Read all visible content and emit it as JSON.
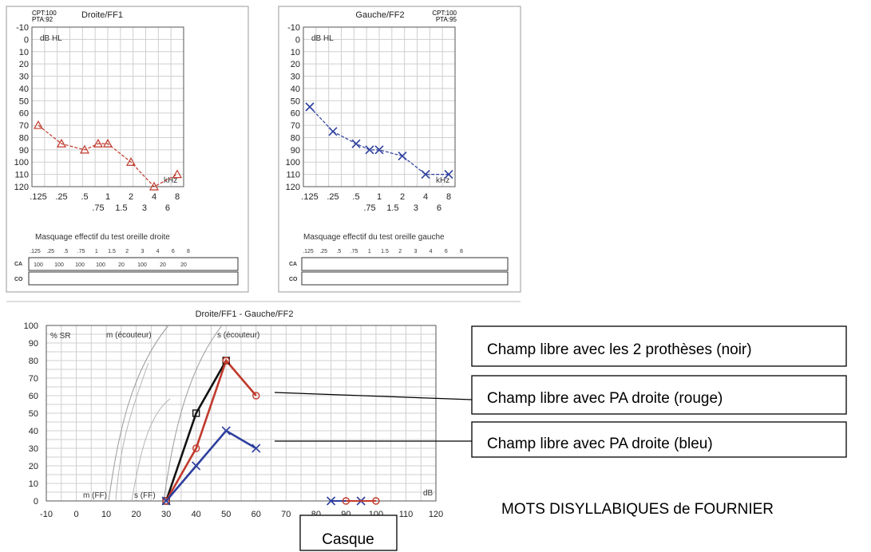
{
  "colors": {
    "right_ear": "#c0392b",
    "left_ear": "#2e3f9e",
    "both": "#111111",
    "masking_red": "#8b1a1a"
  },
  "chart_data": [
    {
      "type": "line",
      "title": "Droite/FF1",
      "stats": [
        "CPT:100",
        "PTA:92"
      ],
      "unit_label": "dB HL",
      "x_unit": "kHz",
      "x_ticks_top": [
        ".125",
        ".25",
        ".5",
        "1",
        "2",
        "4",
        "8"
      ],
      "x_ticks_bottom": [
        ".75",
        "1.5",
        "3",
        "6"
      ],
      "y_ticks": [
        "-10",
        "0",
        "10",
        "20",
        "30",
        "40",
        "50",
        "60",
        "70",
        "80",
        "90",
        "100",
        "110",
        "120"
      ],
      "ylim": [
        -10,
        120
      ],
      "y_inverted": true,
      "x_scale": "log2",
      "series": [
        {
          "marker": "triangle",
          "x": [
            0.125,
            0.25,
            0.5,
            0.75,
            1,
            2,
            4,
            8
          ],
          "y": [
            70,
            85,
            90,
            85,
            85,
            100,
            120,
            110
          ]
        }
      ],
      "masking_title": "Masquage effectif du test oreille droite",
      "masking_freqs": [
        ".125",
        ".25",
        ".5",
        ".75",
        "1",
        "1.5",
        "2",
        "3",
        "4",
        "6",
        "8"
      ],
      "masking_rows": [
        "CA",
        "CO"
      ],
      "masking_ca_values": [
        "100",
        "100",
        "100",
        "100",
        "20",
        "100",
        "20",
        "20"
      ]
    },
    {
      "type": "line",
      "title": "Gauche/FF2",
      "stats": [
        "CPT:100",
        "PTA:95"
      ],
      "unit_label": "dB HL",
      "x_unit": "kHz",
      "x_ticks_top": [
        ".125",
        ".25",
        ".5",
        "1",
        "2",
        "4",
        "8"
      ],
      "x_ticks_bottom": [
        ".75",
        "1.5",
        "3",
        "6"
      ],
      "y_ticks": [
        "-10",
        "0",
        "10",
        "20",
        "30",
        "40",
        "50",
        "60",
        "70",
        "80",
        "90",
        "100",
        "110",
        "120"
      ],
      "ylim": [
        -10,
        120
      ],
      "y_inverted": true,
      "x_scale": "log2",
      "series": [
        {
          "marker": "cross",
          "x": [
            0.125,
            0.25,
            0.5,
            0.75,
            1,
            2,
            4,
            8
          ],
          "y": [
            55,
            75,
            85,
            90,
            90,
            95,
            110,
            110
          ]
        }
      ],
      "masking_title": "Masquage effectif du test oreille gauche",
      "masking_freqs": [
        ".125",
        ".25",
        ".5",
        ".75",
        "1",
        "1.5",
        "2",
        "3",
        "4",
        "6",
        "8"
      ],
      "masking_rows": [
        "CA",
        "CO"
      ]
    },
    {
      "type": "line",
      "title": "Droite/FF1 - Gauche/FF2",
      "ylabel": "% SR",
      "x_unit": "dB",
      "x_ticks": [
        "-10",
        "0",
        "10",
        "20",
        "30",
        "40",
        "50",
        "60",
        "70",
        "80",
        "90",
        "100",
        "110",
        "120"
      ],
      "y_ticks": [
        "100",
        "90",
        "80",
        "70",
        "60",
        "50",
        "40",
        "30",
        "20",
        "10",
        "0"
      ],
      "xlim": [
        -10,
        120
      ],
      "ylim": [
        0,
        100
      ],
      "reference_labels": [
        "m (écouteur)",
        "s (écouteur)",
        "m (FF)",
        "s (FF)"
      ],
      "series": [
        {
          "name": "Champ libre avec les 2 prothèses (noir)",
          "marker": "square",
          "x": [
            30,
            40,
            50
          ],
          "y": [
            0,
            50,
            80
          ]
        },
        {
          "name": "Champ libre avec PA droite (rouge)",
          "marker": "circle",
          "x": [
            30,
            40,
            50,
            60
          ],
          "y": [
            0,
            30,
            80,
            60
          ]
        },
        {
          "name": "Champ libre avec PA droite (bleu)",
          "marker": "cross",
          "x": [
            30,
            40,
            50,
            60
          ],
          "y": [
            0,
            20,
            40,
            30
          ]
        }
      ],
      "casque_series": [
        {
          "marker": "cross",
          "x": [
            85,
            95
          ],
          "y": [
            0,
            0
          ]
        },
        {
          "marker": "circle",
          "x": [
            90,
            100
          ],
          "y": [
            0,
            0
          ]
        }
      ]
    }
  ],
  "callouts": [
    "Champ libre avec les 2 prothèses (noir)",
    "Champ libre avec PA droite (rouge)",
    "Champ libre avec PA droite (bleu)"
  ],
  "casque_label": "Casque",
  "caption": "MOTS DISYLLABIQUES de FOURNIER"
}
